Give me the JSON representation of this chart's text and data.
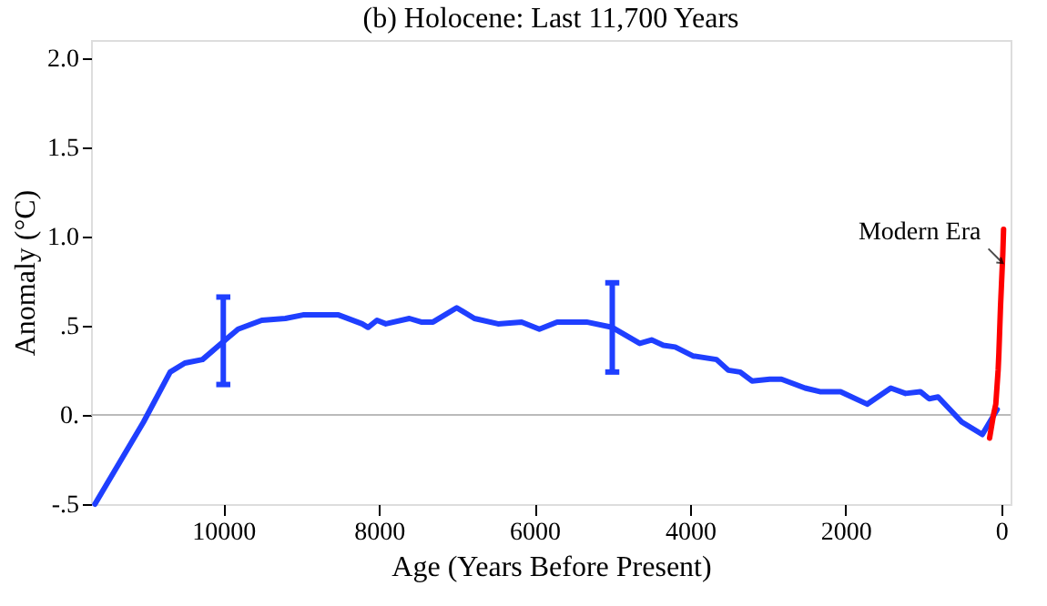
{
  "chart_data": {
    "type": "line",
    "title": "(b)  Holocene: Last 11,700 Years",
    "xlabel": "Age (Years Before Present)",
    "ylabel": "Anomaly (°C)",
    "xlim": [
      11700,
      -120
    ],
    "xticks": [
      10000,
      8000,
      6000,
      4000,
      2000,
      0
    ],
    "ylim": [
      -0.5,
      2.1
    ],
    "yticks": [
      {
        "value": -0.5,
        "label": "-.5"
      },
      {
        "value": 0,
        "label": "0."
      },
      {
        "value": 0.5,
        "label": ".5"
      },
      {
        "value": 1,
        "label": "1.0"
      },
      1.5,
      {
        "value": 2,
        "label": "2.0"
      }
    ],
    "grid": false,
    "line_style": "solid",
    "marker": "none",
    "ref_lines": [
      {
        "axis": "y",
        "value": 0,
        "color": "#bbbbbb"
      }
    ],
    "annotations": [
      {
        "text": "Modern Era",
        "x": -20,
        "y": 0.85
      }
    ],
    "series": [
      {
        "color": "#1f3fff",
        "x": [
          11650,
          11025,
          10683,
          10494,
          10267,
          10000,
          9810,
          9506,
          9203,
          8975,
          8519,
          8216,
          8139,
          8025,
          7911,
          7608,
          7456,
          7304,
          7000,
          6772,
          6469,
          6165,
          5937,
          5709,
          5330,
          5000,
          4647,
          4495,
          4343,
          4191,
          3964,
          3660,
          3508,
          3356,
          3204,
          2976,
          2825,
          2521,
          2331,
          2066,
          1724,
          1420,
          1230,
          1040,
          926,
          812,
          508,
          243,
          52
        ],
        "values": [
          -0.5,
          -0.04,
          0.24,
          0.29,
          0.31,
          0.41,
          0.48,
          0.53,
          0.54,
          0.56,
          0.56,
          0.51,
          0.49,
          0.53,
          0.51,
          0.54,
          0.52,
          0.52,
          0.6,
          0.54,
          0.51,
          0.52,
          0.48,
          0.52,
          0.52,
          0.49,
          0.4,
          0.42,
          0.39,
          0.38,
          0.33,
          0.31,
          0.25,
          0.24,
          0.19,
          0.2,
          0.2,
          0.15,
          0.13,
          0.13,
          0.06,
          0.15,
          0.12,
          0.13,
          0.09,
          0.1,
          -0.04,
          -0.11,
          0.03
        ],
        "errors": [
          null,
          null,
          null,
          null,
          null,
          [
            0.17,
            0.66
          ],
          null,
          null,
          null,
          null,
          null,
          null,
          null,
          null,
          null,
          null,
          null,
          null,
          null,
          null,
          null,
          null,
          null,
          null,
          null,
          [
            0.24,
            0.74
          ],
          null,
          null,
          null,
          null,
          null,
          null,
          null,
          null,
          null,
          null,
          null,
          null,
          null,
          null,
          null,
          null,
          null,
          null,
          null,
          null,
          null,
          null,
          null
        ]
      },
      {
        "color": "#ff0000",
        "x": [
          150,
          100,
          70,
          40,
          30,
          10,
          -20,
          -30
        ],
        "values": [
          -0.13,
          0.0,
          0.06,
          0.25,
          0.35,
          0.6,
          0.9,
          1.04
        ]
      }
    ]
  }
}
